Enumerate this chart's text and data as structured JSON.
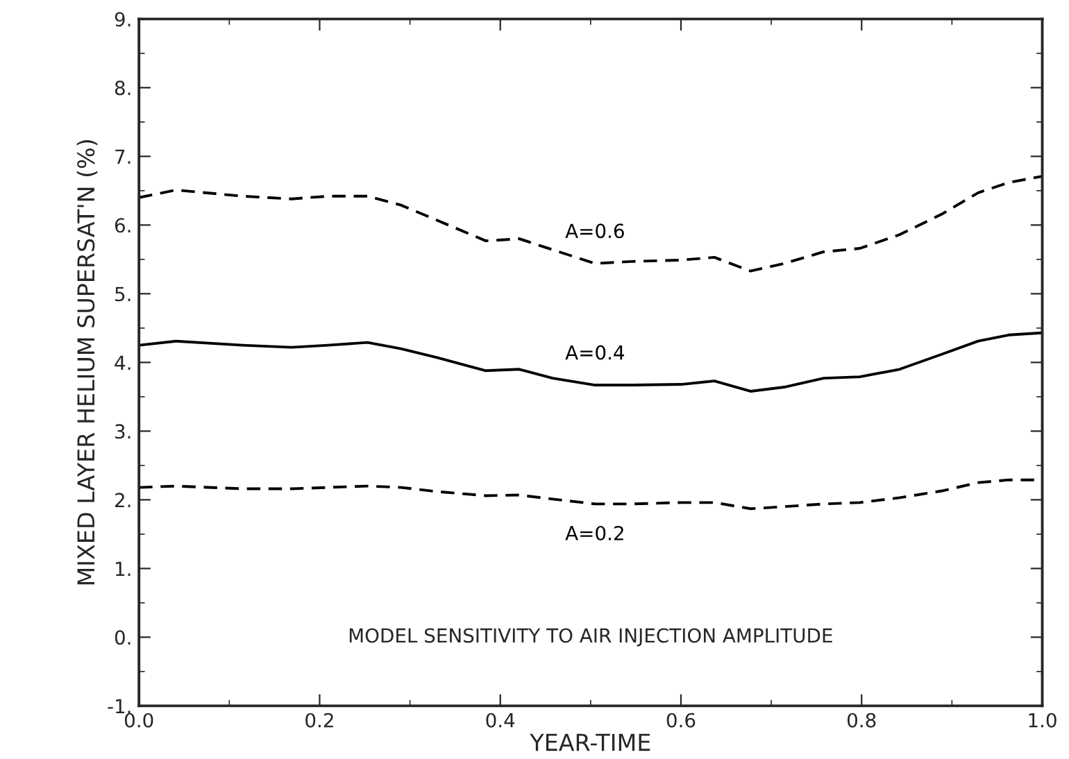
{
  "chart_data": {
    "type": "line",
    "xlabel": "YEAR-TIME",
    "ylabel": "MIXED LAYER HELIUM SUPERSAT'N (%)",
    "x": [
      0.0,
      0.041,
      0.115,
      0.169,
      0.209,
      0.253,
      0.29,
      0.33,
      0.384,
      0.421,
      0.458,
      0.505,
      0.546,
      0.6,
      0.637,
      0.677,
      0.714,
      0.758,
      0.798,
      0.842,
      0.889,
      0.929,
      0.963,
      1.0
    ],
    "series": [
      {
        "name": "A=0.6",
        "color": "#000000",
        "line_style": "dashed",
        "values": [
          6.4,
          6.51,
          6.42,
          6.38,
          6.42,
          6.42,
          6.29,
          6.07,
          5.77,
          5.8,
          5.64,
          5.44,
          5.47,
          5.49,
          5.53,
          5.33,
          5.44,
          5.61,
          5.66,
          5.86,
          6.16,
          6.47,
          6.62,
          6.71
        ]
      },
      {
        "name": "A=0.4",
        "color": "#000000",
        "line_style": "solid",
        "values": [
          4.25,
          4.31,
          4.25,
          4.22,
          4.25,
          4.29,
          4.2,
          4.07,
          3.88,
          3.9,
          3.77,
          3.67,
          3.67,
          3.68,
          3.73,
          3.58,
          3.64,
          3.77,
          3.79,
          3.9,
          4.12,
          4.31,
          4.4,
          4.43
        ]
      },
      {
        "name": "A=0.2",
        "color": "#000000",
        "line_style": "dashed",
        "values": [
          2.18,
          2.2,
          2.16,
          2.16,
          2.18,
          2.2,
          2.18,
          2.12,
          2.06,
          2.07,
          2.01,
          1.94,
          1.94,
          1.96,
          1.96,
          1.87,
          1.9,
          1.94,
          1.96,
          2.03,
          2.13,
          2.25,
          2.29,
          2.29
        ]
      }
    ],
    "xlim": [
      0,
      1
    ],
    "xticks": [
      {
        "value": 0,
        "label": "0.0"
      },
      {
        "value": 0.2,
        "label": "0.2"
      },
      {
        "value": 0.4,
        "label": "0.4"
      },
      {
        "value": 0.6,
        "label": "0.6"
      },
      {
        "value": 0.8,
        "label": "0.8"
      },
      {
        "value": 1,
        "label": "1.0"
      }
    ],
    "ylim": [
      -1,
      9
    ],
    "yticks": [
      {
        "value": -1,
        "label": "-1."
      },
      {
        "value": 0,
        "label": "0."
      },
      {
        "value": 1,
        "label": "1."
      },
      {
        "value": 2,
        "label": "2."
      },
      {
        "value": 3,
        "label": "3."
      },
      {
        "value": 4,
        "label": "4."
      },
      {
        "value": 5,
        "label": "5."
      },
      {
        "value": 6,
        "label": "6."
      },
      {
        "value": 7,
        "label": "7."
      },
      {
        "value": 8,
        "label": "8."
      },
      {
        "value": 9,
        "label": "9."
      }
    ],
    "annotations": [
      "MODEL SENSITIVITY TO AIR INJECTION AMPLITUDE"
    ],
    "grid": false,
    "legend": false,
    "marker": "none"
  }
}
